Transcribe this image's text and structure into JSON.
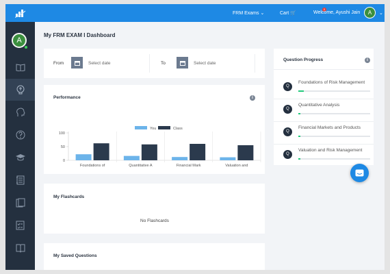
{
  "topbar": {
    "exam_menu": "FRM Exams",
    "cart_label": "Cart",
    "cart_count": "0",
    "welcome": "Welcome, Ayushi Jain",
    "avatar_letter": "A"
  },
  "sidebar": {
    "avatar_letter": "A",
    "items": [
      {
        "icon": "book-open-icon"
      },
      {
        "icon": "brain-icon",
        "active": true
      },
      {
        "icon": "head-icon"
      },
      {
        "icon": "question-icon"
      },
      {
        "icon": "graduation-cap-icon"
      },
      {
        "icon": "notebook-icon"
      },
      {
        "icon": "flashcards-icon"
      },
      {
        "icon": "checklist-icon"
      },
      {
        "icon": "reader-icon"
      }
    ]
  },
  "page": {
    "title": "My FRM EXAM I Dashboard"
  },
  "date_filter": {
    "from_label": "From",
    "from_placeholder": "Select date",
    "to_label": "To",
    "to_placeholder": "Select date"
  },
  "performance": {
    "title": "Performance"
  },
  "chart_data": {
    "type": "bar",
    "categories": [
      "Foundations of",
      "Quantitative A",
      "Financial Mark",
      "Valuation and"
    ],
    "series": [
      {
        "name": "You",
        "color": "#6cb4ea",
        "values": [
          22,
          16,
          12,
          11
        ]
      },
      {
        "name": "Class",
        "color": "#2b3a4d",
        "values": [
          62,
          58,
          60,
          55
        ]
      }
    ],
    "yticks": [
      0,
      50,
      100
    ],
    "ylim": [
      0,
      100
    ],
    "legend": "top-center",
    "grid": false
  },
  "flashcards": {
    "title": "My Flashcards",
    "empty": "No Flashcards"
  },
  "saved_questions": {
    "title": "My Saved Questions"
  },
  "question_progress": {
    "title": "Question Progress",
    "items": [
      {
        "letter": "Q",
        "name": "Foundations of Risk Management",
        "progress": 0.08
      },
      {
        "letter": "Q",
        "name": "Quantitative Analysis",
        "progress": 0.03
      },
      {
        "letter": "Q",
        "name": "Financial Markets and Products",
        "progress": 0.03
      },
      {
        "letter": "Q",
        "name": "Valuation and Risk Management",
        "progress": 0.03
      }
    ]
  }
}
